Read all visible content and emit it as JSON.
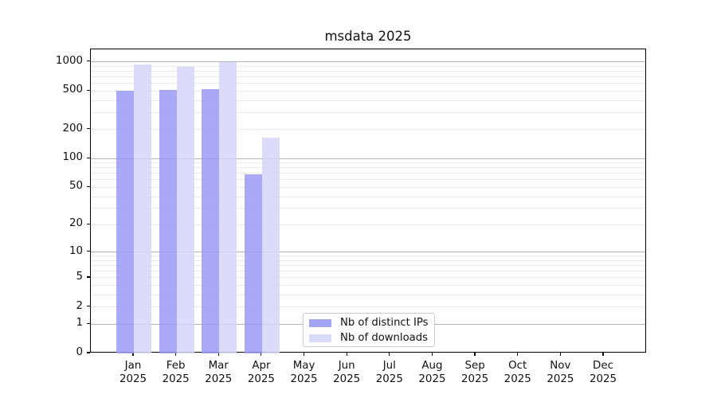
{
  "figure": {
    "background": "#ffffff"
  },
  "chart_data": {
    "type": "bar",
    "title": "msdata 2025",
    "categories": [
      "Jan",
      "Feb",
      "Mar",
      "Apr",
      "May",
      "Jun",
      "Jul",
      "Aug",
      "Sep",
      "Oct",
      "Nov",
      "Dec"
    ],
    "category_year": "2025",
    "series": [
      {
        "name": "Nb of distinct IPs",
        "color": "#9a9af6",
        "values": [
          498,
          515,
          520,
          68,
          0,
          0,
          0,
          0,
          0,
          0,
          0,
          0
        ]
      },
      {
        "name": "Nb of downloads",
        "color": "#d6d6f9",
        "values": [
          932,
          889,
          982,
          163,
          0,
          0,
          0,
          0,
          0,
          0,
          0,
          0
        ]
      }
    ],
    "bar_alpha": 0.85,
    "y_axis": {
      "scale": "log1p",
      "tick_values": [
        0,
        1,
        2,
        5,
        10,
        20,
        50,
        100,
        200,
        500,
        1000
      ],
      "range_max": 1340
    },
    "grid": {
      "major_values": [
        1,
        10,
        100,
        1000
      ],
      "minor_values": [
        2,
        3,
        4,
        5,
        6,
        7,
        8,
        9,
        20,
        30,
        40,
        50,
        60,
        70,
        80,
        90,
        200,
        300,
        400,
        500,
        600,
        700,
        800,
        900
      ],
      "major_color": "#b4b4b4",
      "minor_color": "#e9e9e9"
    },
    "legend": {
      "location": "lower-center"
    }
  }
}
